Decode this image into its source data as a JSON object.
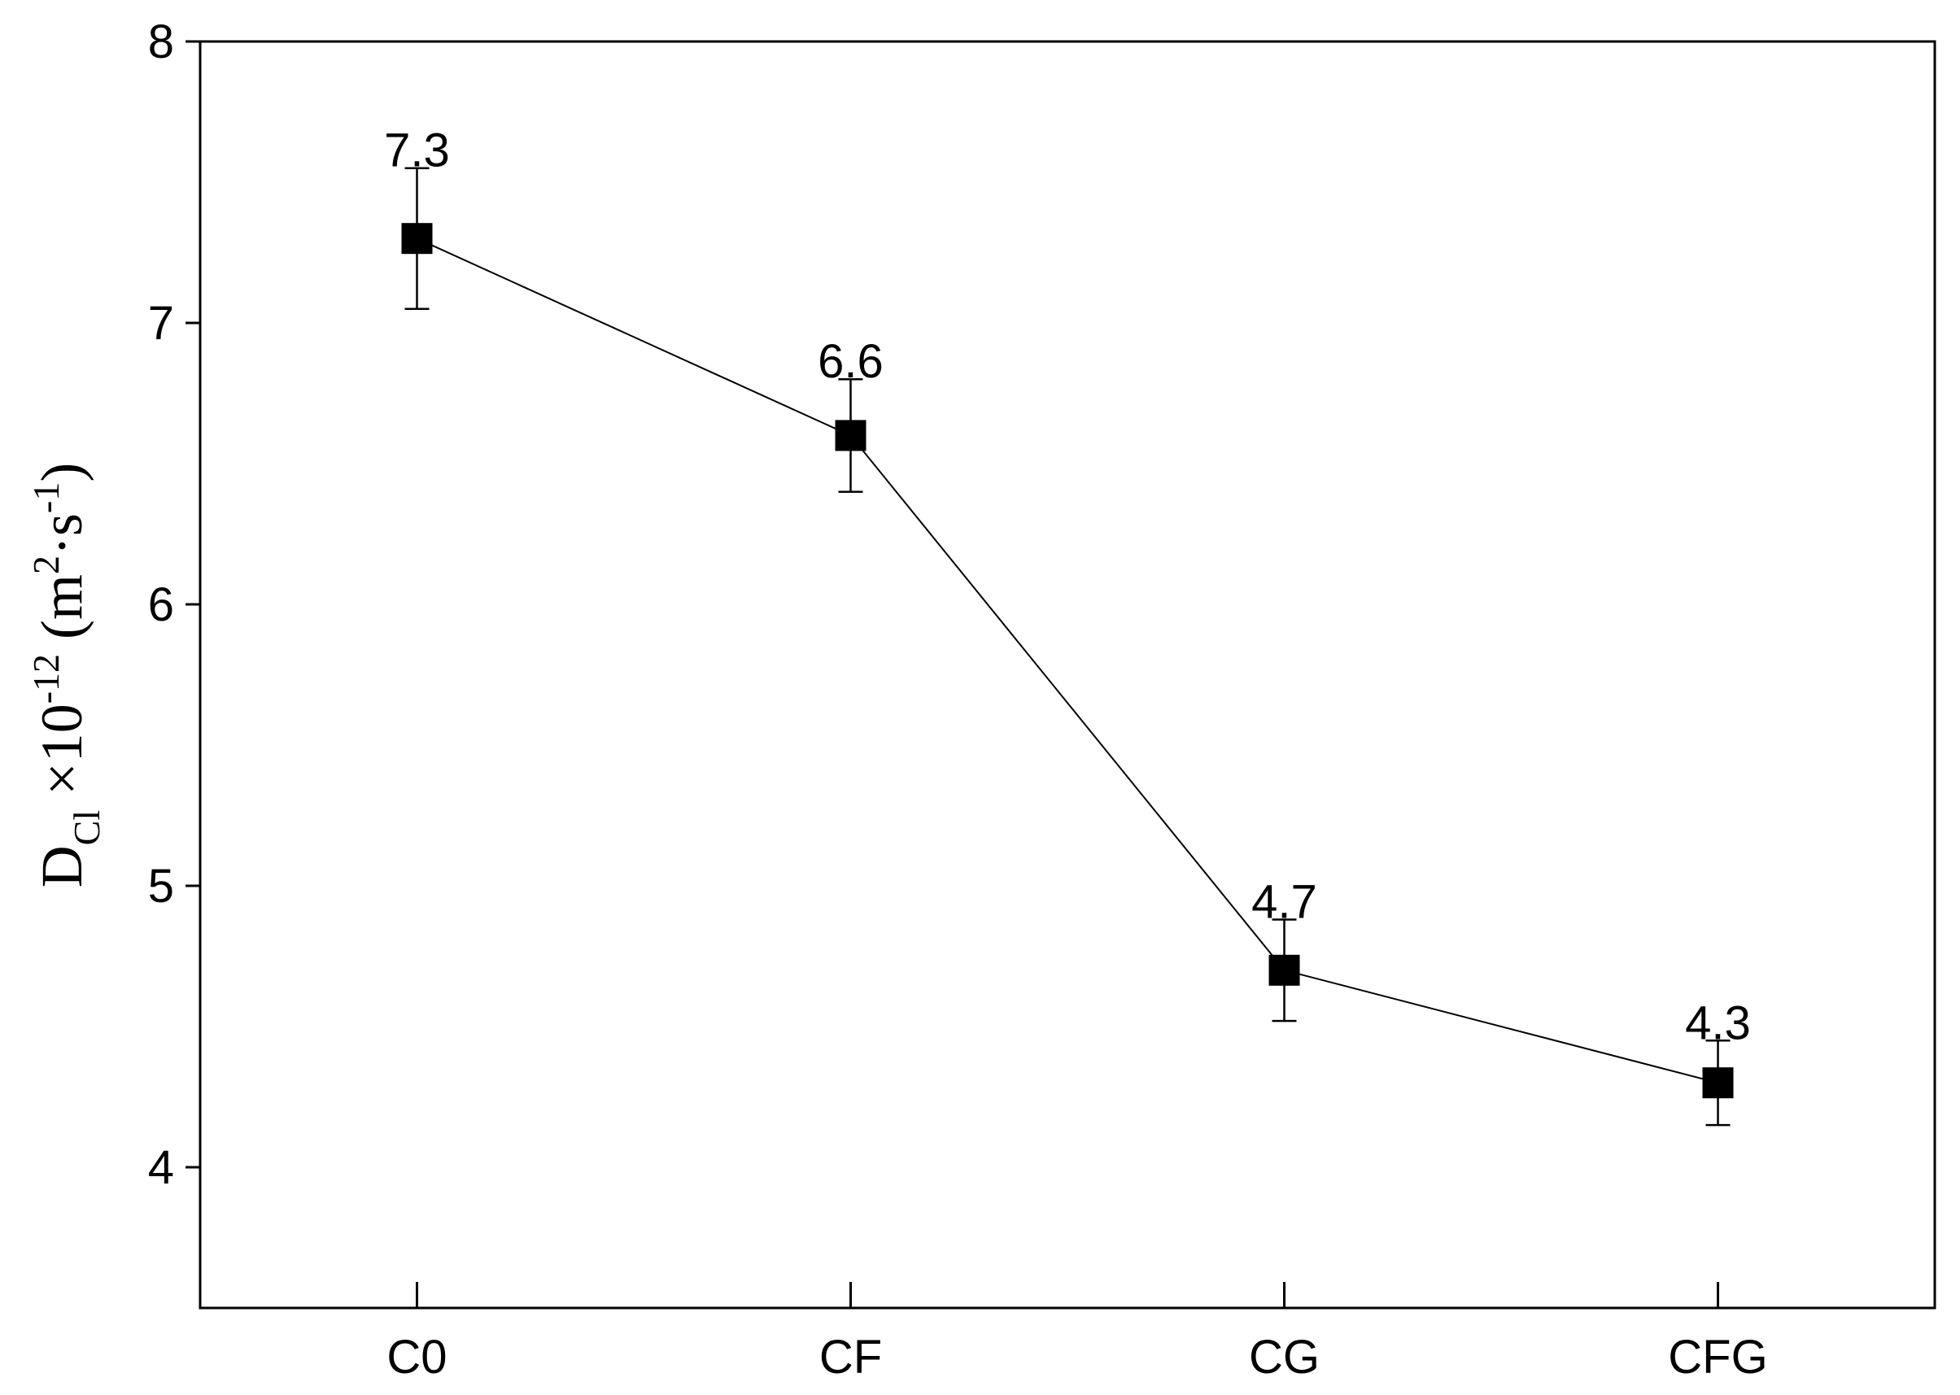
{
  "chart_data": {
    "type": "line",
    "y_label": [
      "D",
      "Cl",
      " ×10",
      "-12",
      " (m",
      "2",
      "·s",
      "-1",
      ")"
    ],
    "categories": [
      "C0",
      "CF",
      "CG",
      "CFG"
    ],
    "series": [
      {
        "color": "#000000",
        "values": [
          7.3,
          6.6,
          4.7,
          4.3
        ],
        "errors": [
          0.25,
          0.2,
          0.18,
          0.15
        ]
      }
    ],
    "ylim": [
      3.5,
      8
    ],
    "yticks": [
      4,
      5,
      6,
      7,
      8
    ],
    "grid": false
  }
}
